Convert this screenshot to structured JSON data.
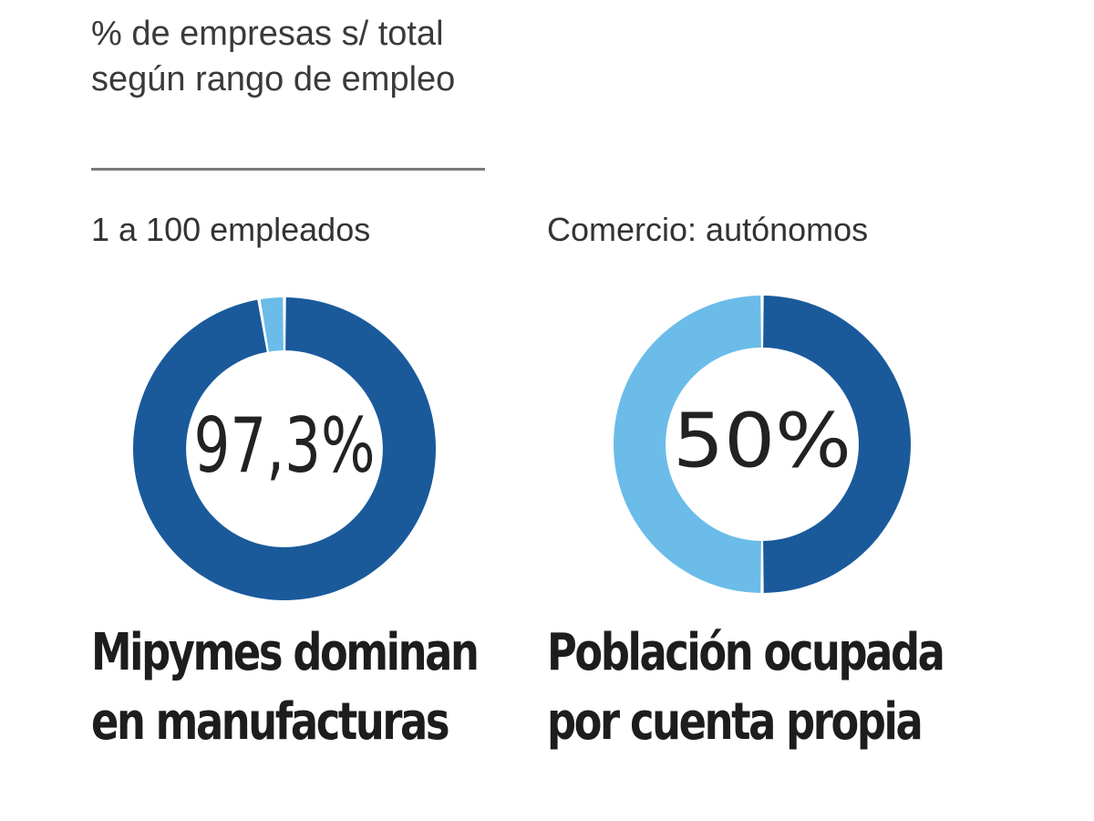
{
  "subtitle": "% de empresas  s/ total según rango de empleo",
  "colors": {
    "dark_blue": "#1a5a9b",
    "light_blue": "#6bbce9"
  },
  "chart_data": [
    {
      "type": "pie",
      "label": "1 a 100 empleados",
      "center_text": "97,3%",
      "headline": [
        "Mipymes dominan",
        "en manufacturas"
      ],
      "slices": [
        {
          "value": 97.3,
          "color": "#1a5a9b"
        },
        {
          "value": 2.7,
          "color": "#6bbce9"
        }
      ]
    },
    {
      "type": "pie",
      "label": "Comercio: autónomos",
      "center_text": "50%",
      "headline": [
        "Población ocupada",
        "por cuenta propia"
      ],
      "slices": [
        {
          "value": 50,
          "color": "#1a5a9b"
        },
        {
          "value": 50,
          "color": "#6bbce9"
        }
      ]
    }
  ]
}
